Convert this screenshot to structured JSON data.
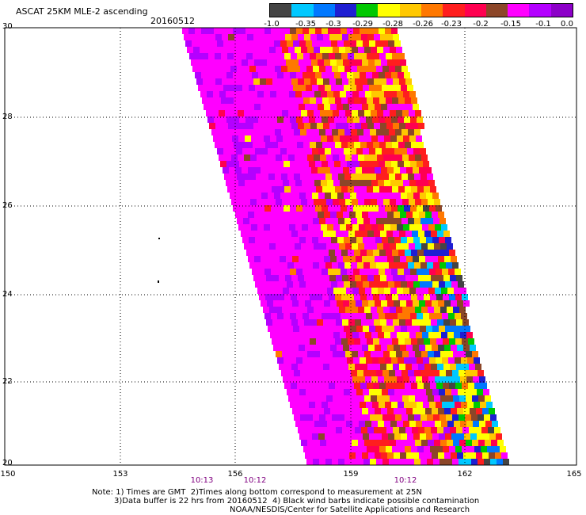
{
  "header": {
    "title": "ASCAT 25KM MLE-2 ascending",
    "date": "20160512"
  },
  "legend": {
    "colors": [
      "#444444",
      "#00c8ff",
      "#0078ff",
      "#1e1ed2",
      "#00c800",
      "#ffff00",
      "#ffc800",
      "#ff7800",
      "#ff1e1e",
      "#ff0050",
      "#8c4628",
      "#ff00ff",
      "#b400ff",
      "#8c00c8"
    ],
    "labels": [
      "-1.0",
      "-0.35",
      "-0.3",
      "-0.29",
      "-0.28",
      "-0.26",
      "-0.23",
      "-0.2",
      "-0.15",
      "-0.1",
      "0.0"
    ]
  },
  "axes": {
    "lat_labels": [
      "30",
      "28",
      "26",
      "24",
      "22",
      "20"
    ],
    "lon_labels": [
      "150",
      "153",
      "156",
      "159",
      "162",
      "165"
    ]
  },
  "time_labels": [
    "10:13",
    "10:12",
    "10:12"
  ],
  "notes": {
    "line1": "Note: 1) Times are GMT  2)Times along bottom correspond to measurement at 25N",
    "line2": "3)Data buffer is 22 hrs from 20160512  4) Black wind barbs indicate possible contamination",
    "line3": "NOAA/NESDIS/Center for Satellite Applications and Research"
  }
}
